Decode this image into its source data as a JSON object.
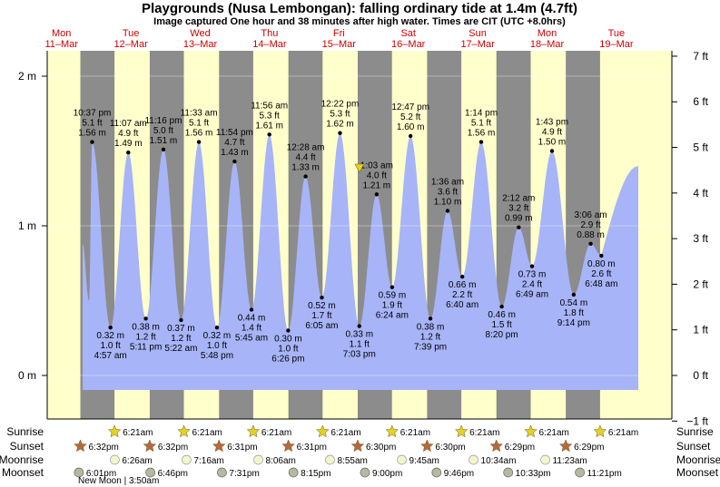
{
  "chart_data": {
    "type": "area",
    "title": "Playgrounds (Nusa Lembongan): falling  ordinary tide at 1.4m (4.7ft)",
    "subtitle": "Image captured One hour and 38 minutes after high water. Times are CIT (UTC +8.0hrs)",
    "y_left_ticks": [
      "0 m",
      "1 m",
      "2 m"
    ],
    "y_right_ticks": [
      "−1 ft",
      "0 ft",
      "1 ft",
      "2 ft",
      "3 ft",
      "4 ft",
      "5 ft",
      "6 ft",
      "7 ft"
    ],
    "ylim_m": [
      -0.3,
      2.1
    ],
    "days": [
      {
        "dow": "Mon",
        "date": "11–Mar"
      },
      {
        "dow": "Tue",
        "date": "12–Mar"
      },
      {
        "dow": "Wed",
        "date": "13–Mar"
      },
      {
        "dow": "Thu",
        "date": "14–Mar"
      },
      {
        "dow": "Fri",
        "date": "15–Mar"
      },
      {
        "dow": "Sat",
        "date": "16–Mar"
      },
      {
        "dow": "Sun",
        "date": "17–Mar"
      },
      {
        "dow": "Mon",
        "date": "18–Mar"
      },
      {
        "dow": "Tue",
        "date": "19–Mar"
      }
    ],
    "sunrise": "6:21am",
    "sunset": [
      "6:32pm",
      "6:32pm",
      "6:31pm",
      "6:31pm",
      "6:30pm",
      "6:30pm",
      "6:29pm",
      "6:29pm"
    ],
    "tides": [
      {
        "time": "10:37 pm",
        "day": 0,
        "hour": 22.62,
        "m": 1.56,
        "ft": "5.1 ft",
        "m_label": "1.56 m",
        "type": "high"
      },
      {
        "time": "4:57 am",
        "day": 1,
        "hour": 4.95,
        "m": 0.32,
        "ft": "1.0 ft",
        "m_label": "0.32 m",
        "type": "low"
      },
      {
        "time": "11:07 am",
        "day": 1,
        "hour": 11.12,
        "m": 1.49,
        "ft": "4.9 ft",
        "m_label": "1.49 m",
        "type": "high"
      },
      {
        "time": "5:11 pm",
        "day": 1,
        "hour": 17.18,
        "m": 0.38,
        "ft": "1.2 ft",
        "m_label": "0.38 m",
        "type": "low"
      },
      {
        "time": "11:16 pm",
        "day": 1,
        "hour": 23.27,
        "m": 1.51,
        "ft": "5.0 ft",
        "m_label": "1.51 m",
        "type": "high"
      },
      {
        "time": "5:22 am",
        "day": 2,
        "hour": 5.37,
        "m": 0.37,
        "ft": "1.2 ft",
        "m_label": "0.37 m",
        "type": "low"
      },
      {
        "time": "11:33 am",
        "day": 2,
        "hour": 11.55,
        "m": 1.56,
        "ft": "5.1 ft",
        "m_label": "1.56 m",
        "type": "high"
      },
      {
        "time": "5:48 pm",
        "day": 2,
        "hour": 17.8,
        "m": 0.32,
        "ft": "1.0 ft",
        "m_label": "0.32 m",
        "type": "low"
      },
      {
        "time": "11:54 pm",
        "day": 2,
        "hour": 23.9,
        "m": 1.43,
        "ft": "4.7 ft",
        "m_label": "1.43 m",
        "type": "high"
      },
      {
        "time": "5:45 am",
        "day": 3,
        "hour": 5.75,
        "m": 0.44,
        "ft": "1.4 ft",
        "m_label": "0.44 m",
        "type": "low"
      },
      {
        "time": "11:56 am",
        "day": 3,
        "hour": 11.93,
        "m": 1.61,
        "ft": "5.3 ft",
        "m_label": "1.61 m",
        "type": "high"
      },
      {
        "time": "6:26 pm",
        "day": 3,
        "hour": 18.43,
        "m": 0.3,
        "ft": "1.0 ft",
        "m_label": "0.30 m",
        "type": "low"
      },
      {
        "time": "12:28 am",
        "day": 4,
        "hour": 0.47,
        "m": 1.33,
        "ft": "4.4 ft",
        "m_label": "1.33 m",
        "type": "high"
      },
      {
        "time": "6:05 am",
        "day": 4,
        "hour": 6.08,
        "m": 0.52,
        "ft": "1.7 ft",
        "m_label": "0.52 m",
        "type": "low"
      },
      {
        "time": "12:22 pm",
        "day": 4,
        "hour": 12.37,
        "m": 1.62,
        "ft": "5.3 ft",
        "m_label": "1.62 m",
        "type": "high"
      },
      {
        "time": "7:03 pm",
        "day": 4,
        "hour": 19.05,
        "m": 0.33,
        "ft": "1.1 ft",
        "m_label": "0.33 m",
        "type": "low"
      },
      {
        "time": "1:03 am",
        "day": 5,
        "hour": 1.05,
        "m": 1.21,
        "ft": "4.0 ft",
        "m_label": "1.21 m",
        "type": "high"
      },
      {
        "time": "6:24 am",
        "day": 5,
        "hour": 6.4,
        "m": 0.59,
        "ft": "1.9 ft",
        "m_label": "0.59 m",
        "type": "low"
      },
      {
        "time": "12:47 pm",
        "day": 5,
        "hour": 12.78,
        "m": 1.6,
        "ft": "5.2 ft",
        "m_label": "1.60 m",
        "type": "high"
      },
      {
        "time": "7:39 pm",
        "day": 5,
        "hour": 19.65,
        "m": 0.38,
        "ft": "1.2 ft",
        "m_label": "0.38 m",
        "type": "low"
      },
      {
        "time": "1:36 am",
        "day": 6,
        "hour": 1.6,
        "m": 1.1,
        "ft": "3.6 ft",
        "m_label": "1.10 m",
        "type": "high"
      },
      {
        "time": "6:40 am",
        "day": 6,
        "hour": 6.67,
        "m": 0.66,
        "ft": "2.2 ft",
        "m_label": "0.66 m",
        "type": "low"
      },
      {
        "time": "1:14 pm",
        "day": 6,
        "hour": 13.23,
        "m": 1.56,
        "ft": "5.1 ft",
        "m_label": "1.56 m",
        "type": "high"
      },
      {
        "time": "8:20 pm",
        "day": 6,
        "hour": 20.33,
        "m": 0.46,
        "ft": "1.5 ft",
        "m_label": "0.46 m",
        "type": "low"
      },
      {
        "time": "2:12 am",
        "day": 7,
        "hour": 2.2,
        "m": 0.99,
        "ft": "3.2 ft",
        "m_label": "0.99 m",
        "type": "high"
      },
      {
        "time": "6:49 am",
        "day": 7,
        "hour": 6.82,
        "m": 0.73,
        "ft": "2.4 ft",
        "m_label": "0.73 m",
        "type": "low"
      },
      {
        "time": "1:43 pm",
        "day": 7,
        "hour": 13.72,
        "m": 1.5,
        "ft": "4.9 ft",
        "m_label": "1.50 m",
        "type": "high"
      },
      {
        "time": "9:14 pm",
        "day": 7,
        "hour": 21.23,
        "m": 0.54,
        "ft": "1.8 ft",
        "m_label": "0.54 m",
        "type": "low"
      },
      {
        "time": "3:06 am",
        "day": 8,
        "hour": 3.1,
        "m": 0.88,
        "ft": "2.9 ft",
        "m_label": "0.88 m",
        "type": "high"
      },
      {
        "time": "6:48 am",
        "day": 8,
        "hour": 6.8,
        "m": 0.8,
        "ft": "2.6 ft",
        "m_label": "0.80 m",
        "type": "low"
      }
    ],
    "rows": {
      "sunrise_label": "Sunrise",
      "sunset_label": "Sunset",
      "moonrise_label": "Moonrise",
      "moonset_label": "Moonset",
      "moonrise": [
        "6:26am",
        "7:16am",
        "8:06am",
        "8:55am",
        "9:45am",
        "10:34am",
        "11:23am"
      ],
      "moonset": [
        "6:01pm",
        "6:46pm",
        "7:31pm",
        "8:15pm",
        "9:00pm",
        "9:46pm",
        "10:33pm",
        "11:21pm"
      ],
      "new_moon": "New Moon | 3:50am"
    },
    "colors": {
      "day": "#ffffcc",
      "night": "#8c8c8c",
      "water": "#a7b4f7",
      "day_label": "#cc0000",
      "sun": "#e8d020",
      "sunset": "#b8683a",
      "moon": "#f5f5cc"
    }
  }
}
